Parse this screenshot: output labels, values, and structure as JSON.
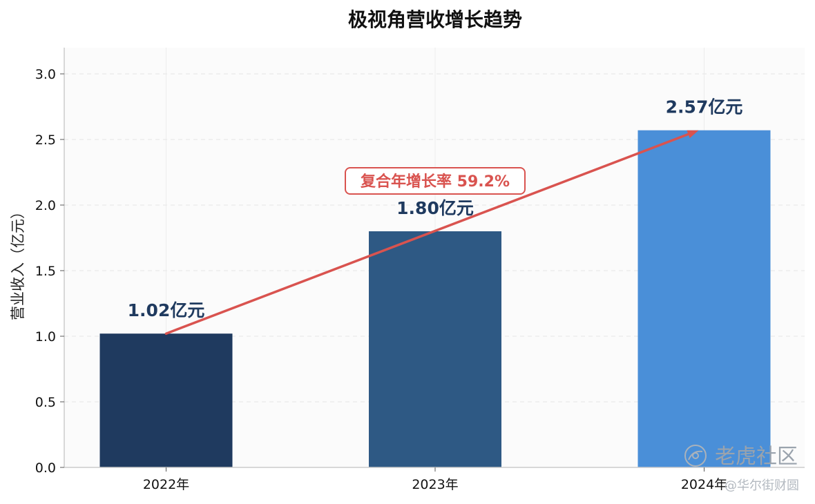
{
  "chart_data": {
    "type": "bar",
    "title": "极视角营收增长趋势",
    "xlabel": "",
    "ylabel": "营业收入（亿元）",
    "categories": [
      "2022年",
      "2023年",
      "2024年"
    ],
    "values": [
      1.02,
      1.8,
      2.57
    ],
    "value_labels": [
      "1.02亿元",
      "1.80亿元",
      "2.57亿元"
    ],
    "bar_colors": [
      "#1f3a5f",
      "#2e5984",
      "#4a8fd8"
    ],
    "ylim": [
      0,
      3.2
    ],
    "yticks": [
      "0.0",
      "0.5",
      "1.0",
      "1.5",
      "2.0",
      "2.5",
      "3.0"
    ],
    "ytick_values": [
      0,
      0.5,
      1.0,
      1.5,
      2.0,
      2.5,
      3.0
    ],
    "grid": true,
    "annotation": {
      "text": "复合年增长率 59.2%",
      "color": "#d9534f",
      "arrow_from": {
        "category": "2022年",
        "value": 1.02
      },
      "arrow_to": {
        "category": "2024年",
        "value": 2.57
      }
    }
  },
  "watermark": {
    "main": "老虎社区",
    "sub": "@华尔街财圆"
  },
  "colors": {
    "plot_bg": "#fbfbfb",
    "grid": "#e6e6e6",
    "axis": "#cccccc",
    "accent": "#d9534f"
  }
}
